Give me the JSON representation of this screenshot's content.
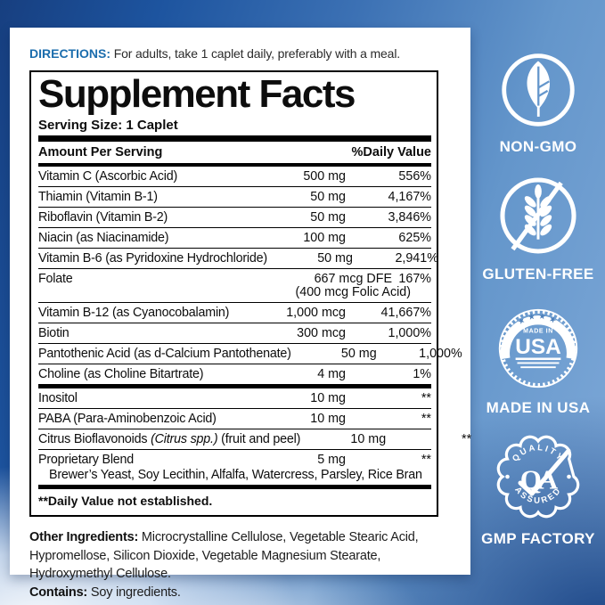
{
  "directions": {
    "label": "DIRECTIONS:",
    "text": " For adults, take 1 caplet daily, preferably with a meal."
  },
  "supplement_facts": {
    "title": "Supplement Facts",
    "serving_size": "Serving Size: 1 Caplet",
    "columns": {
      "amount_header": "Amount Per Serving",
      "dv_header": "%Daily Value"
    },
    "rows": [
      {
        "name": "Vitamin C (Ascorbic Acid)",
        "amount": "500 mg",
        "dv": "556%"
      },
      {
        "name": "Thiamin (Vitamin B-1)",
        "amount": "50 mg",
        "dv": "4,167%"
      },
      {
        "name": "Riboflavin (Vitamin B-2)",
        "amount": "50 mg",
        "dv": "3,846%"
      },
      {
        "name": "Niacin (as Niacinamide)",
        "amount": "100 mg",
        "dv": "625%"
      },
      {
        "name": "Vitamin B-6 (as Pyridoxine Hydrochloride)",
        "amount": "50 mg",
        "dv": "2,941%"
      },
      {
        "name": "Folate",
        "amount": "667 mcg DFE",
        "amount_shift": true,
        "amount2": "(400 mcg Folic Acid)",
        "dv": "167%"
      },
      {
        "name": "Vitamin B-12 (as Cyanocobalamin)",
        "amount": "1,000 mcg",
        "dv": "41,667%"
      },
      {
        "name": "Biotin",
        "amount": "300 mcg",
        "dv": "1,000%"
      },
      {
        "name": "Pantothenic Acid (as d-Calcium Pantothenate)",
        "amount": "50 mg",
        "dv": "1,000%"
      },
      {
        "name": "Choline (as Choline Bitartrate)",
        "amount": "4 mg",
        "dv": "1%",
        "thick_after": true
      },
      {
        "name": "Inositol",
        "amount": "10 mg",
        "dv": "**"
      },
      {
        "name": "PABA (Para-Aminobenzoic Acid)",
        "amount": "10 mg",
        "dv": "**"
      },
      {
        "name_parts": [
          {
            "text": "Citrus Bioflavonoids "
          },
          {
            "text": "(Citrus spp.)",
            "italic": true
          },
          {
            "text": " (fruit and peel)"
          }
        ],
        "amount": "10 mg",
        "dv": "**"
      },
      {
        "name": "Proprietary Blend",
        "amount": "5 mg",
        "dv": "**",
        "last": true,
        "subtext": "Brewer’s Yeast, Soy Lecithin, Alfalfa, Watercress, Parsley, Rice Bran"
      }
    ],
    "footnote": "**Daily Value not established."
  },
  "other_ingredients": {
    "label": "Other Ingredients:",
    "text": " Microcrystalline Cellulose, Vegetable Stearic Acid, Hypromellose, Silicon Dioxide, Vegetable Magnesium Stearate, Hydroxymethyl Cellulose."
  },
  "contains": {
    "label": "Contains:",
    "text": " Soy ingredients."
  },
  "badges": [
    {
      "icon": "leaf-icon",
      "label": "NON-GMO"
    },
    {
      "icon": "wheat-slash-icon",
      "label": "GLUTEN-FREE"
    },
    {
      "icon": "usa-seal-icon",
      "label": "MADE IN USA",
      "stars": "★★★★",
      "seal_top": "MADE IN",
      "seal_main": "USA"
    },
    {
      "icon": "qa-seal-icon",
      "label": "GMP FACTORY",
      "seal_arc_top": "QUALITY",
      "seal_main": "QA",
      "seal_arc_bottom": "ASSURED"
    }
  ],
  "colors": {
    "directions_blue": "#1b6dad",
    "sky_light": "#7fa9d8",
    "sky_dark": "#173f80",
    "label_background": "#ffffff",
    "facts_text": "#0d0d0d",
    "badge_white": "#ffffff"
  }
}
